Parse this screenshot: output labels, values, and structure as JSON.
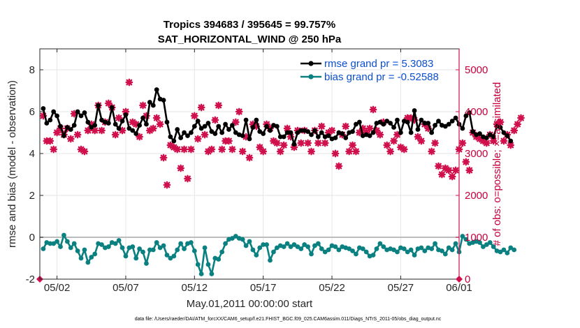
{
  "chart_data": {
    "type": "line",
    "title": [
      "Tropics 394683 / 395645 = 99.757%",
      "SAT_HORIZONTAL_WIND @ 250 hPa"
    ],
    "xlabel": "May.01,2011 00:00:00 start",
    "ylabel_left": "rmse and bias (model - observation)",
    "ylabel_right": "# of obs: o=possible; ×=assimilated",
    "footer": "data file: /Users/raeder/DAI/ATM_forcXX/CAM6_setup/f.e21.FHIST_BGC.f09_025.CAM6assim.011/Diags_NTrS_2011-05/obs_diag_output.nc",
    "xlim": [
      0.75,
      31.25
    ],
    "ylim_left": [
      -2,
      9
    ],
    "ylim_right": [
      0,
      5500
    ],
    "x_ticks": [
      2,
      7,
      12,
      17,
      22,
      27,
      32
    ],
    "x_tick_labels": [
      "05/02",
      "05/07",
      "05/12",
      "05/17",
      "05/22",
      "05/27",
      "06/01"
    ],
    "y_left_ticks": [
      -2,
      0,
      2,
      4,
      6,
      8
    ],
    "y_left_tick_labels": [
      "-2",
      "0",
      "2",
      "4",
      "6",
      "8"
    ],
    "y_right_ticks": [
      0,
      1000,
      2000,
      3000,
      4000,
      5000
    ],
    "y_right_tick_labels": [
      "0",
      "1000",
      "2000",
      "3000",
      "4000",
      "5000"
    ],
    "legend": [
      {
        "name": "rmse grand pr = 5.3083",
        "color": "#000000"
      },
      {
        "name": "bias grand pr = -0.52588",
        "color": "#0a8080"
      }
    ],
    "colors": {
      "rmse": "#000000",
      "bias": "#0a8080",
      "obs": "#d0104c"
    },
    "series": [
      {
        "name": "rmse",
        "x_start": 1.0,
        "x_step": 0.25,
        "values": [
          6.15,
          5.45,
          5.6,
          6.0,
          5.8,
          5.3,
          4.85,
          5.25,
          5.15,
          5.35,
          6.0,
          5.8,
          5.95,
          5.5,
          5.25,
          5.35,
          6.3,
          5.6,
          5.5,
          5.45,
          6.2,
          5.4,
          5.2,
          5.55,
          5.85,
          5.2,
          5.1,
          4.95,
          5.35,
          5.7,
          5.4,
          6.45,
          6.3,
          7.05,
          6.6,
          6.55,
          5.5,
          4.8,
          4.6,
          5.15,
          4.75,
          5.0,
          4.85,
          5.0,
          5.3,
          5.55,
          5.2,
          5.3,
          5.45,
          5.05,
          4.95,
          5.3,
          5.0,
          5.4,
          5.15,
          5.35,
          5.0,
          4.9,
          4.85,
          5.6,
          4.7,
          5.25,
          5.6,
          5.05,
          4.95,
          5.3,
          5.1,
          5.35,
          5.3,
          4.8,
          4.8,
          5.0,
          5.0,
          4.45,
          5.0,
          5.1,
          5.1,
          5.05,
          4.9,
          5.1,
          4.8,
          5.0,
          4.8,
          4.85,
          4.7,
          4.75,
          5.0,
          4.95,
          4.75,
          5.0,
          5.05,
          5.4,
          5.5,
          4.85,
          4.9,
          4.85,
          5.0,
          5.45,
          5.5,
          5.4,
          5.55,
          5.45,
          5.25,
          5.6,
          5.0,
          5.55,
          5.5,
          5.0,
          6.05,
          5.15,
          5.6,
          5.45,
          5.45,
          5.0,
          5.35,
          5.55,
          5.35,
          5.3,
          5.4,
          5.55,
          5.7,
          5.4,
          5.2,
          5.8,
          5.95,
          5.05,
          4.9,
          4.95,
          4.8,
          4.75,
          4.9,
          4.8,
          5.3,
          5.25,
          5.0,
          4.85,
          4.6
        ],
        "gaps_after_index": []
      },
      {
        "name": "bias",
        "x_start": 1.0,
        "x_step": 0.25,
        "values": [
          -0.55,
          -0.25,
          -0.3,
          -0.3,
          -0.2,
          -0.45,
          0.1,
          -0.2,
          -0.5,
          -0.3,
          -0.65,
          -1.0,
          -0.6,
          -1.2,
          -0.95,
          -0.8,
          -0.3,
          -0.35,
          -0.5,
          -0.45,
          -0.25,
          -0.3,
          -0.15,
          -0.5,
          -0.9,
          -0.5,
          -0.45,
          -1.0,
          -0.55,
          -0.7,
          -1.25,
          -0.6,
          -0.6,
          -0.25,
          -0.5,
          -0.4,
          -0.85,
          -1.0,
          -0.9,
          -0.6,
          -0.3,
          -0.55,
          -0.3,
          -0.25,
          -0.65,
          -1.3,
          -1.75,
          -0.5,
          -1.3,
          -1.75,
          -1.0,
          -1.05,
          -0.7,
          -0.3,
          -0.1,
          -0.05,
          0.05,
          -0.05,
          -0.1,
          -0.4,
          -0.2,
          -0.6,
          -0.85,
          -0.5,
          -0.35,
          -0.35,
          -1.1,
          -0.7,
          -0.5,
          -0.4,
          -0.45,
          -0.3,
          -0.45,
          -0.35,
          -0.45,
          -0.55,
          -0.35,
          -0.45,
          -0.8,
          -0.4,
          -0.3,
          -0.55,
          -0.7,
          -0.6,
          -0.4,
          -0.45,
          -0.6,
          -0.45,
          -0.5,
          -0.55,
          -0.65,
          -0.8,
          -0.5,
          -0.55,
          -0.7,
          -0.9,
          -0.85,
          -0.55,
          -0.3,
          -0.45,
          -0.6,
          -0.55,
          -0.6,
          -0.7,
          -0.5,
          -0.55,
          -0.7,
          -0.6,
          -0.85,
          -0.55,
          -0.5,
          -0.65,
          -0.5,
          -0.55,
          -0.3,
          -0.6,
          -0.65,
          -0.8,
          -0.5,
          -0.6,
          -0.3,
          -0.7,
          0.05,
          -0.1,
          -0.3,
          -0.25,
          -0.2,
          -0.25,
          -0.45,
          -0.35,
          -0.25,
          -0.45,
          -0.65,
          -0.7,
          -0.6,
          -0.75,
          -0.5,
          -0.6
        ]
      },
      {
        "name": "obs_count",
        "axis": "right",
        "x_start": 1.0,
        "x_step": 0.25,
        "values": [
          3900,
          3300,
          3300,
          3100,
          3500,
          3600,
          3450,
          3600,
          3350,
          3950,
          3450,
          3100,
          3050,
          3550,
          3700,
          3550,
          4150,
          3550,
          3750,
          4200,
          4100,
          3450,
          3850,
          3550,
          4000,
          4700,
          3750,
          3700,
          3400,
          4150,
          3900,
          3550,
          3600,
          3850,
          3700,
          2900,
          2250,
          3200,
          3150,
          3100,
          2650,
          3100,
          2400,
          3100,
          3900,
          3350,
          4100,
          3450,
          3050,
          3100,
          3800,
          4150,
          3100,
          3300,
          3300,
          3100,
          3750,
          4000,
          3050,
          3400,
          2900,
          3700,
          3650,
          3150,
          3050,
          3700,
          3600,
          3300,
          3250,
          3050,
          3200,
          3600,
          3400,
          3150,
          3550,
          3250,
          3550,
          3250,
          3050,
          3550,
          3250,
          3650,
          3250,
          3500,
          3550,
          3000,
          2700,
          3450,
          3650,
          3050,
          3200,
          3050,
          3500,
          3600,
          3500,
          3600,
          4050,
          3550,
          3450,
          3750,
          3200,
          3050,
          3300,
          3450,
          3150,
          3100,
          3850,
          3850,
          3800,
          3400,
          3300,
          3700,
          3600,
          3050,
          3250,
          2700,
          2500,
          2650,
          2600,
          2450,
          2600,
          3100,
          3250,
          2800,
          2600,
          3500,
          3400,
          3350,
          3300,
          3250,
          3450,
          3300,
          3700,
          3750,
          3300,
          3450,
          3200,
          3550,
          3700,
          3850
        ],
        "endpoints": [
          {
            "x": 0.75,
            "value": 0
          },
          {
            "x": 31.25,
            "value": 0
          }
        ]
      }
    ]
  }
}
